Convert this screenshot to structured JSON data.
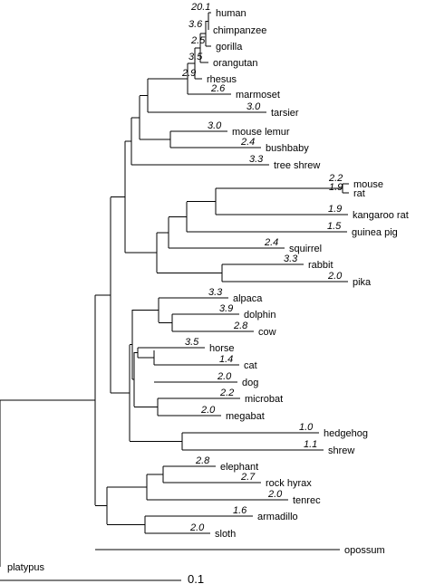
{
  "tree": {
    "tips": [
      {
        "name": "human",
        "value": "20.1"
      },
      {
        "name": "chimpanzee",
        "value": "3.6"
      },
      {
        "name": "gorilla",
        "value": "2.5"
      },
      {
        "name": "orangutan",
        "value": "3.5"
      },
      {
        "name": "rhesus",
        "value": "2.9"
      },
      {
        "name": "marmoset",
        "value": "2.6"
      },
      {
        "name": "tarsier",
        "value": "3.0"
      },
      {
        "name": "mouse lemur",
        "value": "3.0"
      },
      {
        "name": "bushbaby",
        "value": "2.4"
      },
      {
        "name": "tree shrew",
        "value": "3.3"
      },
      {
        "name": "mouse",
        "value": "2.2"
      },
      {
        "name": "rat",
        "value": "1.9"
      },
      {
        "name": "kangaroo rat",
        "value": "1.9"
      },
      {
        "name": "guinea pig",
        "value": "1.5"
      },
      {
        "name": "squirrel",
        "value": "2.4"
      },
      {
        "name": "rabbit",
        "value": "3.3"
      },
      {
        "name": "pika",
        "value": "2.0"
      },
      {
        "name": "alpaca",
        "value": "3.3"
      },
      {
        "name": "dolphin",
        "value": "3.9"
      },
      {
        "name": "cow",
        "value": "2.8"
      },
      {
        "name": "horse",
        "value": "3.5"
      },
      {
        "name": "cat",
        "value": "1.4"
      },
      {
        "name": "dog",
        "value": "2.0"
      },
      {
        "name": "microbat",
        "value": "2.2"
      },
      {
        "name": "megabat",
        "value": "2.0"
      },
      {
        "name": "hedgehog",
        "value": "1.0"
      },
      {
        "name": "shrew",
        "value": "1.1"
      },
      {
        "name": "elephant",
        "value": "2.8"
      },
      {
        "name": "rock hyrax",
        "value": "2.7"
      },
      {
        "name": "tenrec",
        "value": "2.0"
      },
      {
        "name": "armadillo",
        "value": "1.6"
      },
      {
        "name": "sloth",
        "value": "2.0"
      },
      {
        "name": "opossum",
        "value": ""
      },
      {
        "name": "platypus",
        "value": ""
      }
    ],
    "scale_bar": {
      "label": "0.1"
    }
  }
}
